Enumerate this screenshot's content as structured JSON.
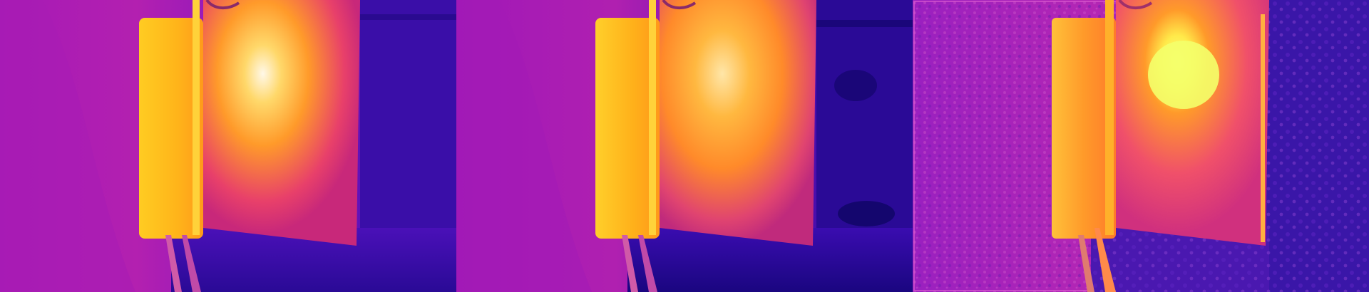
{
  "image": {
    "description_type": "thermal-camera-comparison-strip",
    "panels": [
      {
        "id": "panel-1",
        "style": "smooth"
      },
      {
        "id": "panel-2",
        "style": "smooth-darker"
      },
      {
        "id": "panel-3",
        "style": "noisy-textured"
      }
    ],
    "palette": {
      "cold": "#2a0aa8",
      "cool": "#6a12c8",
      "mid": "#b01ab8",
      "warm": "#e8306a",
      "hot": "#ff8a1a",
      "hotter": "#ffc21a",
      "hottest": "#fff6a0"
    }
  }
}
